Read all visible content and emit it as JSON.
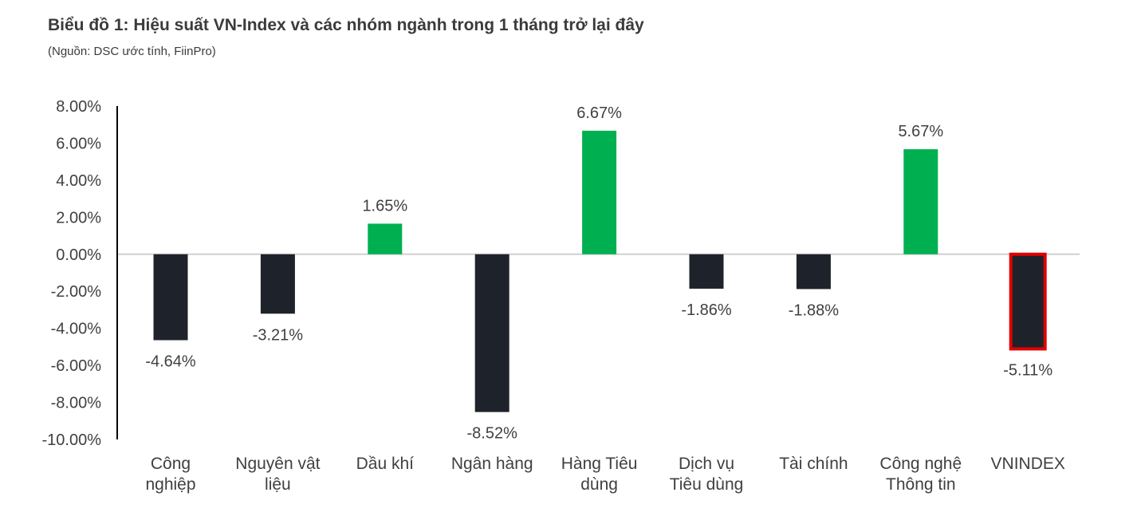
{
  "title": "Biểu đồ 1: Hiệu suất VN-Index và các nhóm ngành trong 1 tháng trở lại đây",
  "subtitle": "(Nguồn: DSC ước tính, FiinPro)",
  "colors": {
    "positive": "#00b050",
    "negative": "#1e232b",
    "highlight_border": "#e00000",
    "zero_line": "#d0d0d0",
    "axis": "#000000",
    "text": "#404040"
  },
  "chart_data": {
    "type": "bar",
    "title": "Biểu đồ 1: Hiệu suất VN-Index và các nhóm ngành trong 1 tháng trở lại đây",
    "xlabel": "",
    "ylabel": "",
    "ylim": [
      -10,
      8
    ],
    "yticks": [
      "8.00%",
      "6.00%",
      "4.00%",
      "2.00%",
      "0.00%",
      "-2.00%",
      "-4.00%",
      "-6.00%",
      "-8.00%",
      "-10.00%"
    ],
    "categories": [
      [
        "Công",
        "nghiệp"
      ],
      [
        "Nguyên vật",
        "liệu"
      ],
      [
        "Dầu khí"
      ],
      [
        "Ngân hàng"
      ],
      [
        "Hàng Tiêu",
        "dùng"
      ],
      [
        "Dịch vụ",
        "Tiêu dùng"
      ],
      [
        "Tài chính"
      ],
      [
        "Công nghệ",
        "Thông tin"
      ],
      [
        "VNINDEX"
      ]
    ],
    "values": [
      -4.64,
      -3.21,
      1.65,
      -8.52,
      6.67,
      -1.86,
      -1.88,
      5.67,
      -5.11
    ],
    "data_labels": [
      "-4.64%",
      "-3.21%",
      "1.65%",
      "-8.52%",
      "6.67%",
      "-1.86%",
      "-1.88%",
      "5.67%",
      "-5.11%"
    ],
    "highlighted_category": "VNINDEX",
    "grid": false,
    "legend": "none"
  }
}
